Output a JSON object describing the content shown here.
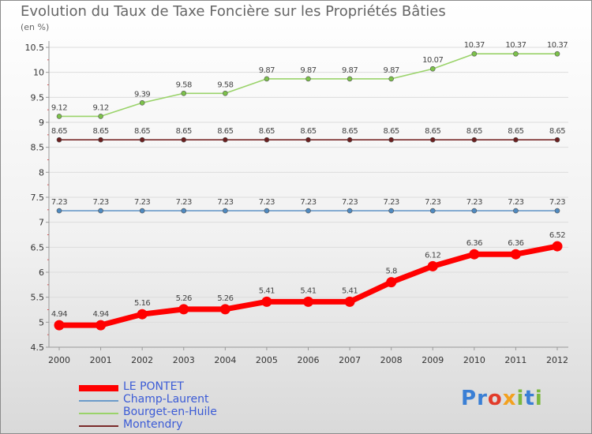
{
  "title": "Evolution du Taux de Taxe Foncière sur les Propriétés Bâties",
  "unit_label": "(en %)",
  "logo": {
    "letters": [
      {
        "ch": "P",
        "color": "#3a7fd5"
      },
      {
        "ch": "r",
        "color": "#3a7fd5"
      },
      {
        "ch": "o",
        "color": "#e23c2b"
      },
      {
        "ch": "x",
        "color": "#f2a11f"
      },
      {
        "ch": "i",
        "color": "#7cb83f"
      },
      {
        "ch": "t",
        "color": "#3a7fd5"
      },
      {
        "ch": "i",
        "color": "#7cb83f"
      }
    ]
  },
  "chart_data": {
    "type": "line",
    "title": "Evolution du Taux de Taxe Foncière sur les Propriétés Bâties",
    "ylabel": "(en %)",
    "xlabel": "",
    "ylim": [
      4.5,
      10.5
    ],
    "y_ticks": [
      "4.5",
      "5",
      "5.5",
      "6",
      "6.5",
      "7",
      "7.5",
      "8",
      "8.5",
      "9",
      "9.5",
      "10",
      "10.5"
    ],
    "x": [
      "2000",
      "2001",
      "2002",
      "2003",
      "2004",
      "2005",
      "2006",
      "2007",
      "2008",
      "2009",
      "2010",
      "2011",
      "2012"
    ],
    "grid": "horizontal",
    "legend_position": "bottom-left",
    "series": [
      {
        "name": "LE PONTET",
        "color": "#ff0000",
        "values": [
          4.94,
          4.94,
          5.16,
          5.26,
          5.26,
          5.41,
          5.41,
          5.41,
          5.8,
          6.12,
          6.36,
          6.36,
          6.52
        ],
        "labels": [
          "4.94",
          "4.94",
          "5.16",
          "5.26",
          "5.26",
          "5.41",
          "5.41",
          "5.41",
          "5.8",
          "6.12",
          "6.36",
          "6.36",
          "6.52"
        ]
      },
      {
        "name": "Champ-Laurent",
        "color": "#6b9bc9",
        "values": [
          7.23,
          7.23,
          7.23,
          7.23,
          7.23,
          7.23,
          7.23,
          7.23,
          7.23,
          7.23,
          7.23,
          7.23,
          7.23
        ],
        "labels": [
          "7.23",
          "7.23",
          "7.23",
          "7.23",
          "7.23",
          "7.23",
          "7.23",
          "7.23",
          "7.23",
          "7.23",
          "7.23",
          "7.23",
          "7.23"
        ]
      },
      {
        "name": "Bourget-en-Huile",
        "color": "#9ad36a",
        "values": [
          9.12,
          9.12,
          9.39,
          9.58,
          9.58,
          9.87,
          9.87,
          9.87,
          9.87,
          10.07,
          10.37,
          10.37,
          10.37
        ],
        "labels": [
          "9.12",
          "9.12",
          "9.39",
          "9.58",
          "9.58",
          "9.87",
          "9.87",
          "9.87",
          "9.87",
          "10.07",
          "10.37",
          "10.37",
          "10.37"
        ]
      },
      {
        "name": "Montendry",
        "color": "#7a2a2a",
        "values": [
          8.65,
          8.65,
          8.65,
          8.65,
          8.65,
          8.65,
          8.65,
          8.65,
          8.65,
          8.65,
          8.65,
          8.65,
          8.65
        ],
        "labels": [
          "8.65",
          "8.65",
          "8.65",
          "8.65",
          "8.65",
          "8.65",
          "8.65",
          "8.65",
          "8.65",
          "8.65",
          "8.65",
          "8.65",
          "8.65"
        ]
      }
    ]
  }
}
